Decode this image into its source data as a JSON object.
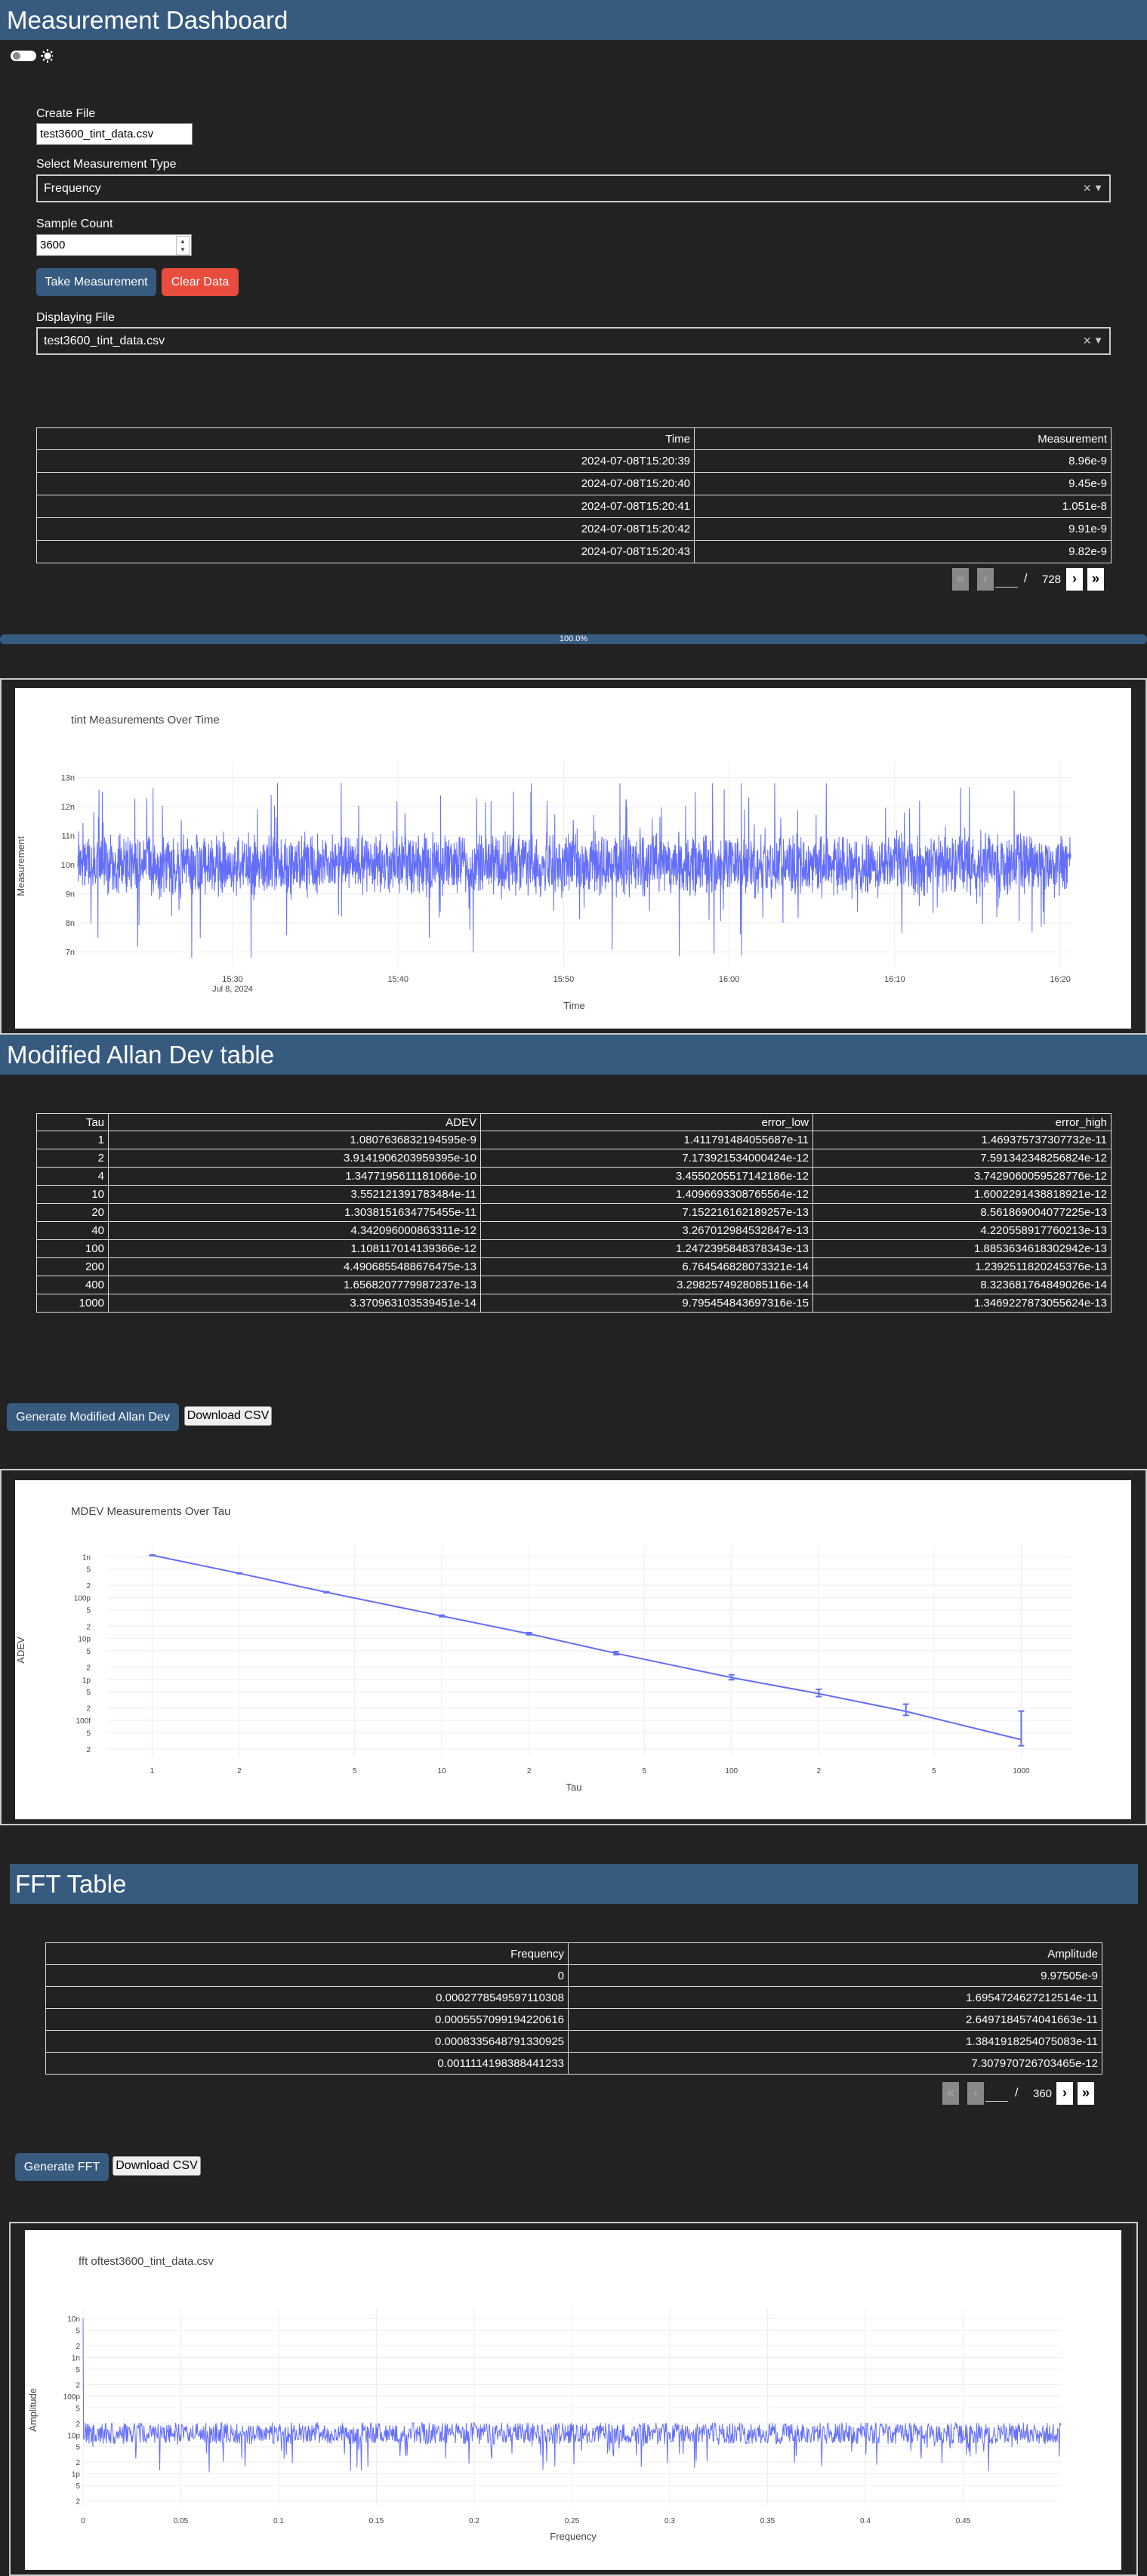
{
  "header": {
    "title": "Measurement Dashboard"
  },
  "theme_toggle": {
    "moon_icon": "moon-icon",
    "sun_icon": "sun-icon",
    "state": "off"
  },
  "create_file": {
    "label": "Create File",
    "value": "test3600_tint_data.csv"
  },
  "measurement_type": {
    "label": "Select Measurement Type",
    "value": "Frequency"
  },
  "sample_count": {
    "label": "Sample Count",
    "value": "3600"
  },
  "buttons": {
    "take": "Take Measurement",
    "clear": "Clear Data"
  },
  "displaying_file": {
    "label": "Displaying File",
    "value": "test3600_tint_data.csv"
  },
  "measurement_table": {
    "columns": [
      "Time",
      "Measurement"
    ],
    "rows": [
      [
        "2024-07-08T15:20:39",
        "8.96e-9"
      ],
      [
        "2024-07-08T15:20:40",
        "9.45e-9"
      ],
      [
        "2024-07-08T15:20:41",
        "1.051e-8"
      ],
      [
        "2024-07-08T15:20:42",
        "9.91e-9"
      ],
      [
        "2024-07-08T15:20:43",
        "9.82e-9"
      ]
    ],
    "pagination": {
      "first": "«",
      "prev": "‹",
      "current": "1",
      "sep": "/",
      "total": "728",
      "next": "›",
      "last": "»"
    }
  },
  "progress": {
    "label": "100.0%",
    "value": 1.0
  },
  "tint_chart": {
    "title": "tint Measurements Over Time",
    "xlabel": "Time",
    "ylabel": "Measurement",
    "x_ticks": [
      "15:30",
      "15:40",
      "15:50",
      "16:00",
      "16:10",
      "16:20"
    ],
    "x_subtick": "Jul 8, 2024",
    "y_ticks": [
      "13n",
      "12n",
      "11n",
      "10n",
      "9n",
      "8n",
      "7n"
    ]
  },
  "allan": {
    "title": "Modified Allan Dev table",
    "columns": [
      "Tau",
      "ADEV",
      "error_low",
      "error_high"
    ],
    "rows": [
      [
        "1",
        "1.0807636832194595e-9",
        "1.411791484055687e-11",
        "1.469375737307732e-11"
      ],
      [
        "2",
        "3.9141906203959395e-10",
        "7.173921534000424e-12",
        "7.591342348256824e-12"
      ],
      [
        "4",
        "1.3477195611181066e-10",
        "3.4550205517142186e-12",
        "3.7429060059528776e-12"
      ],
      [
        "10",
        "3.552121391783484e-11",
        "1.4096693308765564e-12",
        "1.6002291438818921e-12"
      ],
      [
        "20",
        "1.3038151634775455e-11",
        "7.152216162189257e-13",
        "8.561869004077225e-13"
      ],
      [
        "40",
        "4.342096000863311e-12",
        "3.267012984532847e-13",
        "4.220558917760213e-13"
      ],
      [
        "100",
        "1.108117014139366e-12",
        "1.2472395848378343e-13",
        "1.8853634618302942e-13"
      ],
      [
        "200",
        "4.4906855488676475e-13",
        "6.764546828073321e-14",
        "1.2392511820245376e-13"
      ],
      [
        "400",
        "1.6568207779987237e-13",
        "3.2982574928085116e-14",
        "8.323681764849026e-14"
      ],
      [
        "1000",
        "3.370963103539451e-14",
        "9.795454843697316e-15",
        "1.3469227873055624e-13"
      ]
    ],
    "generate_button": "Generate Modified Allan Dev",
    "download_button": "Download CSV"
  },
  "mdev_chart": {
    "title": "MDEV Measurements Over Tau",
    "xlabel": "Tau",
    "ylabel": "ADEV",
    "x_ticks": [
      "1",
      "2",
      "5",
      "10",
      "2",
      "5",
      "100",
      "2",
      "5",
      "1000"
    ],
    "y_ticks": [
      "1n",
      "5",
      "2",
      "100p",
      "5",
      "2",
      "10p",
      "5",
      "2",
      "1p",
      "5",
      "2",
      "100f",
      "5",
      "2"
    ]
  },
  "fft": {
    "title": "FFT Table",
    "columns": [
      "Frequency",
      "Amplitude"
    ],
    "rows": [
      [
        "0",
        "9.97505e-9"
      ],
      [
        "0.0002778549597110308",
        "1.6954724627212514e-11"
      ],
      [
        "0.0005557099194220616",
        "2.6497184574041663e-11"
      ],
      [
        "0.0008335648791330925",
        "1.3841918254075083e-11"
      ],
      [
        "0.0011114198388441233",
        "7.307970726703465e-12"
      ]
    ],
    "pagination": {
      "first": "«",
      "prev": "‹",
      "current": "1",
      "sep": "/",
      "total": "360",
      "next": "›",
      "last": "»"
    },
    "generate_button": "Generate FFT",
    "download_button": "Download CSV"
  },
  "fft_chart": {
    "title": "fft oftest3600_tint_data.csv",
    "xlabel": "Frequency",
    "ylabel": "Amplitude",
    "x_ticks": [
      "0",
      "0.05",
      "0.1",
      "0.15",
      "0.2",
      "0.25",
      "0.3",
      "0.35",
      "0.4",
      "0.45"
    ],
    "y_ticks": [
      "10n",
      "5",
      "2",
      "1n",
      "5",
      "2",
      "100p",
      "5",
      "2",
      "10p",
      "5",
      "2",
      "1p",
      "5",
      "2"
    ]
  },
  "chart_data": [
    {
      "type": "line",
      "title": "tint Measurements Over Time",
      "xlabel": "Time",
      "ylabel": "Measurement",
      "x_range": [
        "2024-07-08T15:20:39",
        "2024-07-08T16:20:38"
      ],
      "ylim": [
        6.6e-09,
        1.33e-08
      ],
      "series": [
        {
          "values_summary": {
            "count": 3600,
            "mean": 1e-08,
            "min": 6.7e-09,
            "max": 1.28e-08
          }
        }
      ],
      "grid": true,
      "color": "#636efa"
    },
    {
      "type": "line",
      "title": "MDEV Measurements Over Tau",
      "xlabel": "Tau",
      "ylabel": "ADEV",
      "x_scale": "log",
      "y_scale": "log",
      "x": [
        1,
        2,
        4,
        10,
        20,
        40,
        100,
        200,
        400,
        1000
      ],
      "values": [
        1.0807636832194595e-09,
        3.9141906203959395e-10,
        1.3477195611181066e-10,
        3.552121391783484e-11,
        1.3038151634775455e-11,
        4.342096000863311e-12,
        1.108117014139366e-12,
        4.4906855488676475e-13,
        1.6568207779987237e-13,
        3.370963103539451e-14
      ],
      "error_low": [
        1.411791484055687e-11,
        7.173921534000424e-12,
        3.4550205517142186e-12,
        1.4096693308765564e-12,
        7.152216162189257e-13,
        3.267012984532847e-13,
        1.2472395848378343e-13,
        6.764546828073321e-14,
        3.2982574928085116e-14,
        9.795454843697316e-15
      ],
      "error_high": [
        1.469375737307732e-11,
        7.591342348256824e-12,
        3.7429060059528775e-12,
        1.6002291438818921e-12,
        8.561869004077225e-13,
        4.220558917760213e-13,
        1.8853634618302942e-13,
        1.2392511820245376e-13,
        8.323681764849026e-14,
        1.3469227873055624e-13
      ],
      "grid": true,
      "color": "#636efa"
    },
    {
      "type": "line",
      "title": "fft oftest3600_tint_data.csv",
      "xlabel": "Frequency",
      "ylabel": "Amplitude",
      "x_range": [
        0,
        0.5
      ],
      "y_scale": "log",
      "ylim": [
        1.5e-13,
        1.2e-08
      ],
      "series": [
        {
          "values_summary": {
            "count": 1800,
            "typical": 1.2e-11
          }
        }
      ],
      "grid": true,
      "color": "#636efa"
    }
  ]
}
